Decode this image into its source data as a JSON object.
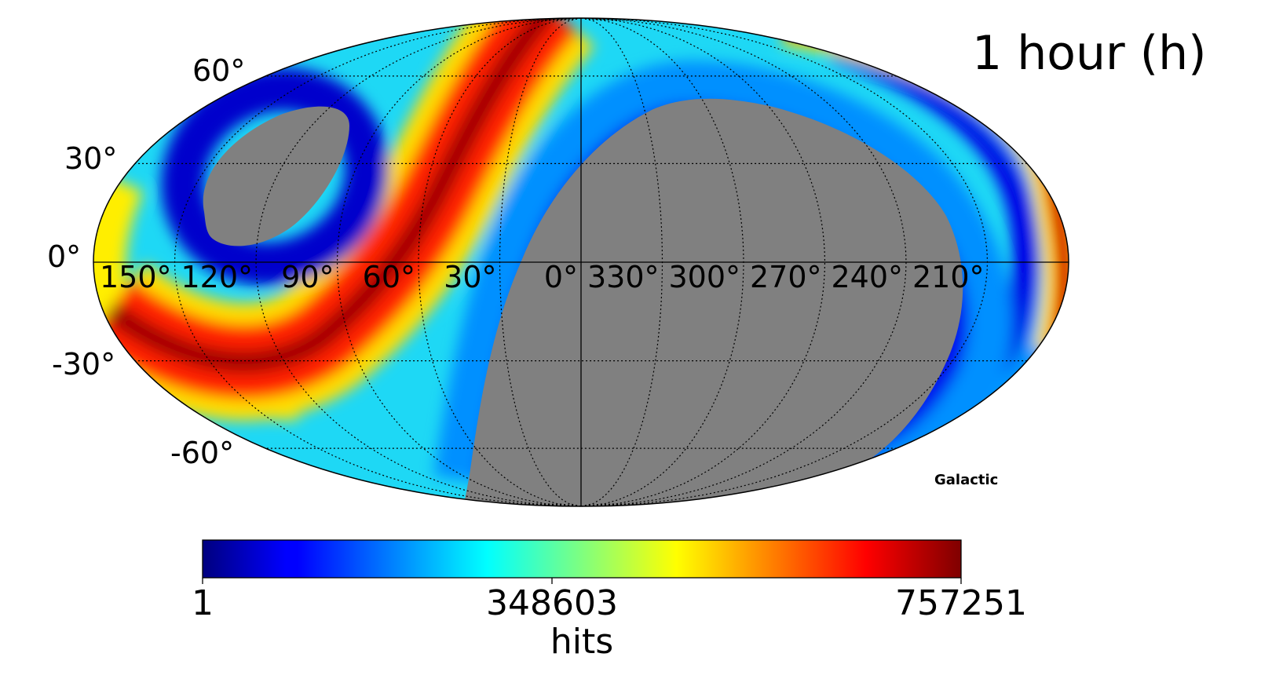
{
  "chart_data": {
    "type": "heatmap",
    "projection": "mollweide",
    "coordinate_system": "Galactic",
    "title": "1 hour (h)",
    "colormap": "jet",
    "colorbar": {
      "label": "hits",
      "min": 1,
      "max": 757251,
      "tick_labels": [
        "1",
        "348603",
        "757251"
      ]
    },
    "latitude_labels": [
      "60°",
      "30°",
      "0°",
      "-30°",
      "-60°"
    ],
    "longitude_labels": [
      "150°",
      "120°",
      "90°",
      "60°",
      "30°",
      "0°",
      "330°",
      "300°",
      "270°",
      "240°",
      "210°"
    ],
    "graticule": true,
    "unseen_color": "#808080"
  }
}
